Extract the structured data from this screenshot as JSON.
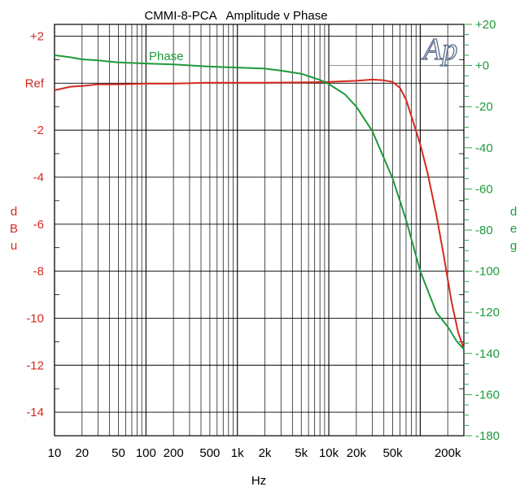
{
  "chart_data": {
    "type": "line",
    "title": "CMMI-8-PCA   Amplitude v Phase",
    "xlabel": "Hz",
    "ylabel_left": "dBu",
    "ylabel_right": "deg",
    "x_scale": "log",
    "xlim": [
      10,
      300000
    ],
    "ylim_left": [
      -15,
      2.5
    ],
    "ylim_right": [
      -180,
      20
    ],
    "grid": true,
    "x_tick_labels": [
      {
        "v": 10,
        "t": "10"
      },
      {
        "v": 20,
        "t": "20"
      },
      {
        "v": 50,
        "t": "50"
      },
      {
        "v": 100,
        "t": "100"
      },
      {
        "v": 200,
        "t": "200"
      },
      {
        "v": 500,
        "t": "500"
      },
      {
        "v": 1000,
        "t": "1k"
      },
      {
        "v": 2000,
        "t": "2k"
      },
      {
        "v": 5000,
        "t": "5k"
      },
      {
        "v": 10000,
        "t": "10k"
      },
      {
        "v": 20000,
        "t": "20k"
      },
      {
        "v": 50000,
        "t": "50k"
      },
      {
        "v": 200000,
        "t": "200k"
      }
    ],
    "y_left_tick_labels": [
      {
        "v": 2,
        "t": "+2"
      },
      {
        "v": 0,
        "t": "Ref"
      },
      {
        "v": -2,
        "t": "-2"
      },
      {
        "v": -4,
        "t": "-4"
      },
      {
        "v": -6,
        "t": "-6"
      },
      {
        "v": -8,
        "t": "-8"
      },
      {
        "v": -10,
        "t": "-10"
      },
      {
        "v": -12,
        "t": "-12"
      },
      {
        "v": -14,
        "t": "-14"
      }
    ],
    "y_right_tick_labels": [
      {
        "v": 20,
        "t": "+20"
      },
      {
        "v": 0,
        "t": "+0"
      },
      {
        "v": -20,
        "t": "-20"
      },
      {
        "v": -40,
        "t": "-40"
      },
      {
        "v": -60,
        "t": "-60"
      },
      {
        "v": -80,
        "t": "-80"
      },
      {
        "v": -100,
        "t": "-100"
      },
      {
        "v": -120,
        "t": "-120"
      },
      {
        "v": -140,
        "t": "-140"
      },
      {
        "v": -160,
        "t": "-160"
      },
      {
        "v": -180,
        "t": "-180"
      }
    ],
    "series": [
      {
        "name": "",
        "axis": "left",
        "color": "#d42a20",
        "points": [
          [
            10,
            -0.3
          ],
          [
            15,
            -0.15
          ],
          [
            20,
            -0.12
          ],
          [
            30,
            -0.05
          ],
          [
            50,
            -0.05
          ],
          [
            100,
            -0.02
          ],
          [
            200,
            -0.02
          ],
          [
            500,
            0.02
          ],
          [
            1000,
            0.02
          ],
          [
            2000,
            0.02
          ],
          [
            5000,
            0.03
          ],
          [
            10000,
            0.05
          ],
          [
            20000,
            0.1
          ],
          [
            30000,
            0.15
          ],
          [
            40000,
            0.12
          ],
          [
            50000,
            0.05
          ],
          [
            60000,
            -0.2
          ],
          [
            70000,
            -0.7
          ],
          [
            80000,
            -1.4
          ],
          [
            100000,
            -2.6
          ],
          [
            120000,
            -3.8
          ],
          [
            150000,
            -5.6
          ],
          [
            180000,
            -7.3
          ],
          [
            220000,
            -9.3
          ],
          [
            260000,
            -10.6
          ],
          [
            300000,
            -11.3
          ]
        ]
      },
      {
        "name": "Phase",
        "axis": "right",
        "color": "#1e9a3c",
        "points": [
          [
            10,
            5
          ],
          [
            15,
            4
          ],
          [
            20,
            3
          ],
          [
            30,
            2.5
          ],
          [
            50,
            1.5
          ],
          [
            100,
            1
          ],
          [
            200,
            0.5
          ],
          [
            500,
            -0.5
          ],
          [
            1000,
            -1
          ],
          [
            2000,
            -1.5
          ],
          [
            3000,
            -2.5
          ],
          [
            5000,
            -4
          ],
          [
            8000,
            -7
          ],
          [
            10000,
            -9
          ],
          [
            15000,
            -14
          ],
          [
            20000,
            -20
          ],
          [
            30000,
            -32
          ],
          [
            50000,
            -55
          ],
          [
            70000,
            -75
          ],
          [
            100000,
            -100
          ],
          [
            150000,
            -120
          ],
          [
            200000,
            -127
          ],
          [
            250000,
            -134
          ],
          [
            300000,
            -138
          ]
        ]
      }
    ],
    "annotations": [
      {
        "text": "Phase",
        "series": "Phase"
      }
    ]
  }
}
